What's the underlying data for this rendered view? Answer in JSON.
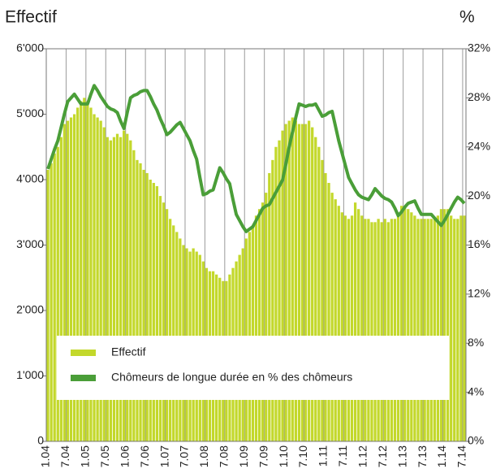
{
  "chart_data": {
    "type": "bar",
    "y_label": "Effectif",
    "y2_label": "%",
    "categories": [
      "1.04",
      null,
      null,
      null,
      null,
      null,
      "7.04",
      null,
      null,
      null,
      null,
      null,
      "1.05",
      null,
      null,
      null,
      null,
      null,
      "7.05",
      null,
      null,
      null,
      null,
      null,
      "1.06",
      null,
      null,
      null,
      null,
      null,
      "7.06",
      null,
      null,
      null,
      null,
      null,
      "1.07",
      null,
      null,
      null,
      null,
      null,
      "7.07",
      null,
      null,
      null,
      null,
      null,
      "1.08",
      null,
      null,
      null,
      null,
      null,
      "7.08",
      null,
      null,
      null,
      null,
      null,
      "1.09",
      null,
      null,
      null,
      null,
      null,
      "7.09",
      null,
      null,
      null,
      null,
      null,
      "1.10",
      null,
      null,
      null,
      null,
      null,
      "7.10",
      null,
      null,
      null,
      null,
      null,
      "1.11",
      null,
      null,
      null,
      null,
      null,
      "7.11",
      null,
      null,
      null,
      null,
      null,
      "1.12",
      null,
      null,
      null,
      null,
      null,
      "7.12",
      null,
      null,
      null,
      null,
      null,
      "1.13",
      null,
      null,
      null,
      null,
      null,
      "7.13",
      null,
      null,
      null,
      null,
      null,
      "1.14",
      null,
      null,
      null,
      null,
      null,
      "7.14"
    ],
    "series": [
      {
        "name": "Effectif",
        "type": "bar",
        "color": "#c3d82b",
        "values": [
          4150,
          4250,
          4400,
          4500,
          4650,
          4850,
          4900,
          4950,
          5000,
          5100,
          5200,
          5250,
          5200,
          5100,
          5000,
          4950,
          4900,
          4800,
          4650,
          4600,
          4650,
          4700,
          4650,
          4750,
          4700,
          4600,
          4450,
          4300,
          4250,
          4150,
          4100,
          4000,
          3950,
          3900,
          3750,
          3650,
          3550,
          3400,
          3300,
          3200,
          3100,
          3000,
          2950,
          2900,
          2950,
          2900,
          2850,
          2750,
          2650,
          2600,
          2600,
          2550,
          2500,
          2450,
          2450,
          2550,
          2650,
          2750,
          2850,
          2950,
          3100,
          3200,
          3300,
          3450,
          3550,
          3650,
          3800,
          4100,
          4300,
          4500,
          4600,
          4750,
          4850,
          4900,
          4950,
          4900,
          4850,
          4850,
          4850,
          4900,
          4800,
          4650,
          4500,
          4300,
          4100,
          3950,
          3800,
          3700,
          3600,
          3500,
          3450,
          3400,
          3450,
          3650,
          3550,
          3450,
          3400,
          3400,
          3350,
          3350,
          3400,
          3350,
          3400,
          3350,
          3400,
          3400,
          3450,
          3600,
          3600,
          3550,
          3500,
          3450,
          3400,
          3400,
          3400,
          3400,
          3400,
          3400,
          3450,
          3550,
          3550,
          3550,
          3450,
          3400,
          3400,
          3450,
          3450
        ]
      },
      {
        "name": "Chômeurs de longue durée en % des chômeurs",
        "type": "line",
        "axis": "y2",
        "color": "#4a9e38",
        "values": [
          22.2,
          23.0,
          23.8,
          24.5,
          25.6,
          26.7,
          27.7,
          28.0,
          28.3,
          27.9,
          27.5,
          27.5,
          27.5,
          28.3,
          29.0,
          28.6,
          28.1,
          27.7,
          27.3,
          27.1,
          27.0,
          26.8,
          26.1,
          25.5,
          26.8,
          28.0,
          28.2,
          28.3,
          28.5,
          28.6,
          28.6,
          28.1,
          27.5,
          27.0,
          26.3,
          25.7,
          25.0,
          25.2,
          25.5,
          25.8,
          26.0,
          25.5,
          25.0,
          24.5,
          23.7,
          23.0,
          21.5,
          20.1,
          20.2,
          20.4,
          20.5,
          21.4,
          22.3,
          21.9,
          21.4,
          21.0,
          19.7,
          18.5,
          18.0,
          17.5,
          17.1,
          17.3,
          17.5,
          18.0,
          18.5,
          19.0,
          19.2,
          19.3,
          19.8,
          20.3,
          20.8,
          21.3,
          22.6,
          24.0,
          25.2,
          26.4,
          27.5,
          27.4,
          27.3,
          27.4,
          27.4,
          27.5,
          27.0,
          26.5,
          26.6,
          26.8,
          26.9,
          25.7,
          24.5,
          23.5,
          22.5,
          21.5,
          21.0,
          20.5,
          20.1,
          19.9,
          19.8,
          19.7,
          20.1,
          20.6,
          20.3,
          20.0,
          19.8,
          19.7,
          19.5,
          19.0,
          18.4,
          18.7,
          19.1,
          19.4,
          19.5,
          19.6,
          19.0,
          18.5,
          18.5,
          18.5,
          18.5,
          18.2,
          17.9,
          17.6,
          18.0,
          18.5,
          19.0,
          19.5,
          19.9,
          19.7,
          19.4
        ]
      }
    ],
    "ylim": [
      0,
      6000
    ],
    "yticks": [
      {
        "value": 0,
        "label": "0"
      },
      {
        "value": 1000,
        "label": "1'000"
      },
      {
        "value": 2000,
        "label": "2'000"
      },
      {
        "value": 3000,
        "label": "3'000"
      },
      {
        "value": 4000,
        "label": "4'000"
      },
      {
        "value": 5000,
        "label": "5'000"
      },
      {
        "value": 6000,
        "label": "6'000"
      }
    ],
    "y2lim": [
      0,
      32
    ],
    "y2ticks": [
      {
        "value": 0,
        "label": "0%"
      },
      {
        "value": 4,
        "label": "4%"
      },
      {
        "value": 8,
        "label": "8%"
      },
      {
        "value": 12,
        "label": "12%"
      },
      {
        "value": 16,
        "label": "16%"
      },
      {
        "value": 20,
        "label": "20%"
      },
      {
        "value": 24,
        "label": "24%"
      },
      {
        "value": 28,
        "label": "28%"
      },
      {
        "value": 32,
        "label": "32%"
      }
    ],
    "grid": true,
    "legend": "bottom"
  }
}
